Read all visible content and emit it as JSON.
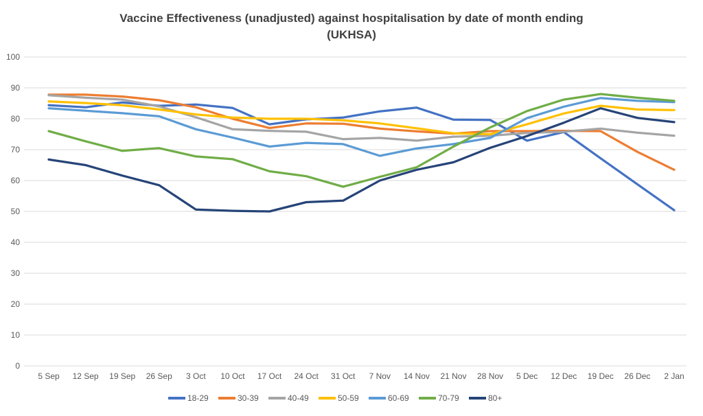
{
  "chart_data": {
    "type": "line",
    "title": "Vaccine Effectiveness (unadjusted) against hospitalisation by date of month ending",
    "subtitle": "(UKHSA)",
    "xlabel": "",
    "ylabel": "",
    "ylim": [
      0,
      100
    ],
    "y_ticks": [
      0,
      10,
      20,
      30,
      40,
      50,
      60,
      70,
      80,
      90,
      100
    ],
    "grid": "horizontal",
    "legend_position": "bottom",
    "categories": [
      "5 Sep",
      "12 Sep",
      "19 Sep",
      "26 Sep",
      "3 Oct",
      "10 Oct",
      "17 Oct",
      "24 Oct",
      "31 Oct",
      "7 Nov",
      "14 Nov",
      "21 Nov",
      "28 Nov",
      "5 Dec",
      "12 Dec",
      "19 Dec",
      "26 Dec",
      "2 Jan"
    ],
    "series": [
      {
        "name": "18-29",
        "color": "#4472C4",
        "values": [
          84.4,
          83.7,
          85.3,
          84.2,
          84.6,
          83.5,
          78.2,
          79.8,
          80.4,
          82.4,
          83.6,
          79.7,
          79.6,
          72.9,
          75.7,
          67.2,
          58.8,
          50.4
        ]
      },
      {
        "name": "30-39",
        "color": "#ED7D31",
        "values": [
          87.8,
          87.8,
          87.2,
          86.0,
          83.7,
          80.0,
          77.0,
          78.5,
          78.4,
          76.8,
          75.9,
          75.2,
          76.0,
          76.0,
          76.1,
          76.0,
          69.3,
          63.5
        ]
      },
      {
        "name": "40-49",
        "color": "#A5A5A5",
        "values": [
          87.6,
          86.8,
          86.2,
          84.0,
          80.5,
          76.6,
          76.1,
          75.8,
          73.4,
          73.8,
          72.9,
          74.2,
          74.5,
          75.4,
          75.8,
          76.8,
          75.5,
          74.5
        ]
      },
      {
        "name": "50-59",
        "color": "#FFC000",
        "values": [
          85.6,
          85.1,
          84.4,
          83.0,
          81.4,
          80.4,
          80.0,
          80.0,
          79.5,
          78.5,
          76.9,
          75.3,
          75.0,
          78.2,
          81.7,
          84.2,
          83.0,
          82.8
        ]
      },
      {
        "name": "60-69",
        "color": "#5B9BD5",
        "values": [
          83.4,
          82.6,
          81.8,
          80.8,
          76.6,
          73.9,
          71.0,
          72.2,
          71.8,
          68.0,
          70.4,
          71.8,
          73.8,
          80.2,
          83.9,
          86.7,
          85.8,
          85.4
        ]
      },
      {
        "name": "70-79",
        "color": "#70AD47",
        "values": [
          76.0,
          72.7,
          69.6,
          70.5,
          67.8,
          66.9,
          63.0,
          61.4,
          58.0,
          61.2,
          64.3,
          71.0,
          77.2,
          82.5,
          86.2,
          88.0,
          86.8,
          85.8
        ]
      },
      {
        "name": "80+",
        "color": "#264478",
        "values": [
          66.8,
          65.0,
          61.6,
          58.5,
          50.6,
          50.2,
          50.0,
          53.0,
          53.5,
          60.0,
          63.5,
          65.9,
          70.6,
          74.4,
          78.7,
          83.4,
          80.3,
          78.9
        ]
      }
    ]
  }
}
